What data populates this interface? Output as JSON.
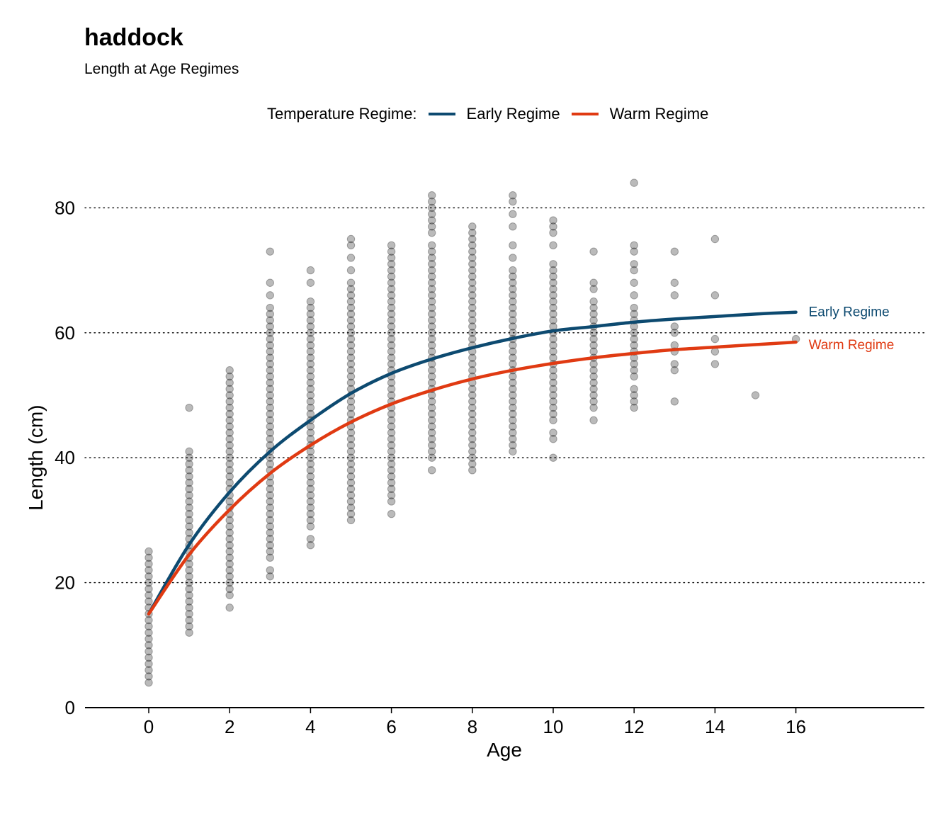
{
  "chart": {
    "title": "haddock",
    "subtitle": "Length at Age Regimes",
    "legend_title": "Temperature Regime:"
  },
  "chart_data": {
    "type": "scatter",
    "title": "haddock",
    "subtitle": "Length at Age Regimes",
    "xlabel": "Age",
    "ylabel": "Length (cm)",
    "xlim": [
      -1,
      17.5
    ],
    "ylim": [
      0,
      84
    ],
    "x_ticks": [
      0,
      2,
      4,
      6,
      8,
      10,
      12,
      14,
      16
    ],
    "y_ticks": [
      0,
      20,
      40,
      60,
      80
    ],
    "grid": "horizontal dotted",
    "legend_position": "top",
    "observations": [
      {
        "age": 0,
        "lengths": [
          4,
          5,
          6,
          7,
          8,
          9,
          10,
          11,
          12,
          13,
          14,
          15,
          16,
          17,
          18,
          19,
          20,
          21,
          22,
          23,
          24,
          25
        ]
      },
      {
        "age": 1,
        "lengths": [
          12,
          13,
          14,
          15,
          16,
          17,
          18,
          19,
          20,
          21,
          22,
          23,
          24,
          25,
          26,
          27,
          28,
          29,
          30,
          31,
          32,
          33,
          34,
          35,
          36,
          37,
          38,
          39,
          40,
          41,
          48
        ]
      },
      {
        "age": 2,
        "lengths": [
          16,
          18,
          19,
          20,
          21,
          22,
          23,
          24,
          25,
          26,
          27,
          28,
          29,
          30,
          31,
          32,
          33,
          34,
          35,
          36,
          37,
          38,
          39,
          40,
          41,
          42,
          43,
          44,
          45,
          46,
          47,
          48,
          49,
          50,
          51,
          52,
          53,
          54
        ]
      },
      {
        "age": 3,
        "lengths": [
          21,
          22,
          24,
          25,
          26,
          27,
          28,
          29,
          30,
          31,
          32,
          33,
          34,
          35,
          36,
          37,
          38,
          39,
          40,
          41,
          42,
          43,
          44,
          45,
          46,
          47,
          48,
          49,
          50,
          51,
          52,
          53,
          54,
          55,
          56,
          57,
          58,
          59,
          60,
          61,
          62,
          63,
          64,
          66,
          68,
          73
        ]
      },
      {
        "age": 4,
        "lengths": [
          26,
          27,
          29,
          30,
          31,
          32,
          33,
          34,
          35,
          36,
          37,
          38,
          39,
          40,
          41,
          42,
          43,
          44,
          45,
          46,
          47,
          48,
          49,
          50,
          51,
          52,
          53,
          54,
          55,
          56,
          57,
          58,
          59,
          60,
          61,
          62,
          63,
          64,
          65,
          68,
          70
        ]
      },
      {
        "age": 5,
        "lengths": [
          30,
          31,
          32,
          33,
          34,
          35,
          36,
          37,
          38,
          39,
          40,
          41,
          42,
          43,
          44,
          45,
          46,
          47,
          48,
          49,
          50,
          51,
          52,
          53,
          54,
          55,
          56,
          57,
          58,
          59,
          60,
          61,
          62,
          63,
          64,
          65,
          66,
          67,
          68,
          70,
          72,
          74,
          75
        ]
      },
      {
        "age": 6,
        "lengths": [
          31,
          33,
          34,
          35,
          36,
          37,
          38,
          39,
          40,
          41,
          42,
          43,
          44,
          45,
          46,
          47,
          48,
          49,
          50,
          51,
          52,
          53,
          54,
          55,
          56,
          57,
          58,
          59,
          60,
          61,
          62,
          63,
          64,
          65,
          66,
          67,
          68,
          69,
          70,
          71,
          72,
          73,
          74
        ]
      },
      {
        "age": 7,
        "lengths": [
          38,
          40,
          41,
          42,
          43,
          44,
          45,
          46,
          47,
          48,
          49,
          50,
          51,
          52,
          53,
          54,
          55,
          56,
          57,
          58,
          59,
          60,
          61,
          62,
          63,
          64,
          65,
          66,
          67,
          68,
          69,
          70,
          71,
          72,
          73,
          74,
          76,
          77,
          78,
          79,
          80,
          81,
          82
        ]
      },
      {
        "age": 8,
        "lengths": [
          38,
          39,
          40,
          41,
          42,
          43,
          44,
          45,
          46,
          47,
          48,
          49,
          50,
          51,
          52,
          53,
          54,
          55,
          56,
          57,
          58,
          59,
          60,
          61,
          62,
          63,
          64,
          65,
          66,
          67,
          68,
          69,
          70,
          71,
          72,
          73,
          74,
          75,
          76,
          77
        ]
      },
      {
        "age": 9,
        "lengths": [
          41,
          42,
          43,
          44,
          45,
          46,
          47,
          48,
          49,
          50,
          51,
          52,
          53,
          54,
          55,
          56,
          57,
          58,
          59,
          60,
          61,
          62,
          63,
          64,
          65,
          66,
          67,
          68,
          69,
          70,
          72,
          74,
          77,
          79,
          81,
          82
        ]
      },
      {
        "age": 10,
        "lengths": [
          40,
          43,
          44,
          46,
          47,
          48,
          49,
          50,
          51,
          52,
          53,
          54,
          55,
          56,
          57,
          58,
          59,
          60,
          61,
          62,
          63,
          64,
          65,
          66,
          67,
          68,
          69,
          70,
          71,
          74,
          76,
          77,
          78
        ]
      },
      {
        "age": 11,
        "lengths": [
          46,
          48,
          49,
          50,
          51,
          52,
          53,
          54,
          55,
          56,
          57,
          58,
          59,
          60,
          61,
          62,
          63,
          64,
          65,
          67,
          68,
          73
        ]
      },
      {
        "age": 12,
        "lengths": [
          48,
          49,
          50,
          51,
          53,
          54,
          55,
          56,
          57,
          58,
          59,
          60,
          61,
          62,
          63,
          64,
          66,
          68,
          70,
          71,
          73,
          74,
          84
        ]
      },
      {
        "age": 13,
        "lengths": [
          49,
          54,
          55,
          57,
          58,
          60,
          61,
          66,
          68,
          73
        ]
      },
      {
        "age": 14,
        "lengths": [
          55,
          57,
          59,
          66,
          75
        ]
      },
      {
        "age": 15,
        "lengths": [
          50
        ]
      },
      {
        "age": 16,
        "lengths": [
          59
        ]
      }
    ],
    "series": [
      {
        "name": "Early Regime",
        "color": "#0d4a70",
        "x": [
          0,
          1,
          2,
          3,
          4,
          5,
          6,
          7,
          8,
          9,
          10,
          11,
          12,
          13,
          14,
          15,
          16
        ],
        "values": [
          15,
          26.1,
          34.5,
          41.0,
          46.0,
          50.3,
          53.5,
          55.8,
          57.6,
          59.1,
          60.3,
          61.0,
          61.7,
          62.2,
          62.6,
          63.0,
          63.3
        ]
      },
      {
        "name": "Warm Regime",
        "color": "#e03a12",
        "x": [
          0,
          1,
          2,
          3,
          4,
          5,
          6,
          7,
          8,
          9,
          10,
          11,
          12,
          13,
          14,
          15,
          16
        ],
        "values": [
          15,
          24.5,
          31.7,
          37.5,
          42.0,
          45.7,
          48.6,
          50.8,
          52.6,
          54.0,
          55.1,
          56.0,
          56.7,
          57.3,
          57.7,
          58.1,
          58.5
        ]
      }
    ]
  }
}
